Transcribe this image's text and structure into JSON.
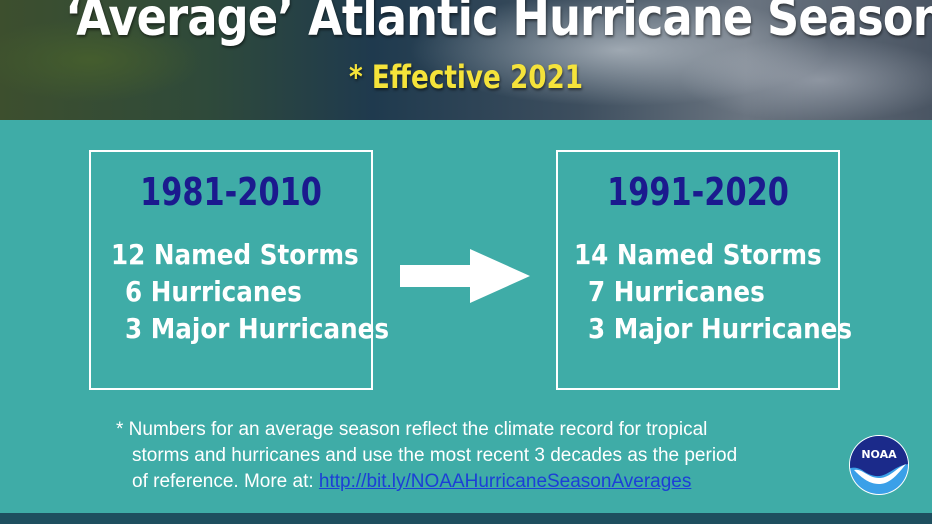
{
  "header": {
    "title": "‘Average’ Atlantic Hurricane Season",
    "subtitle": "* Effective 2021"
  },
  "periods": [
    {
      "heading": "1981-2010",
      "stats": [
        "12 Named Storms",
        "6 Hurricanes",
        "3 Major Hurricanes"
      ]
    },
    {
      "heading": "1991-2020",
      "stats": [
        "14 Named Storms",
        "7 Hurricanes",
        "3 Major Hurricanes"
      ]
    }
  ],
  "footnote": {
    "line1": "* Numbers for an average season reflect the climate record for tropical",
    "line2": "storms and hurricanes and use the most recent 3 decades as the period",
    "line3_prefix": "of reference. More at: ",
    "link": "http://bit.ly/NOAAHurricaneSeasonAverages"
  },
  "logo": {
    "text": "NOAA",
    "icon": "noaa-logo-icon",
    "colors": {
      "top": "#1b2a8a",
      "bottom": "#3aa0e8",
      "bird": "#ffffff"
    }
  },
  "colors": {
    "background": "#3faca7",
    "heading": "#1b1a8e",
    "subtitle": "#f5e33a",
    "link": "#1c3fd6",
    "bottom_bar": "#1e4f5f"
  }
}
